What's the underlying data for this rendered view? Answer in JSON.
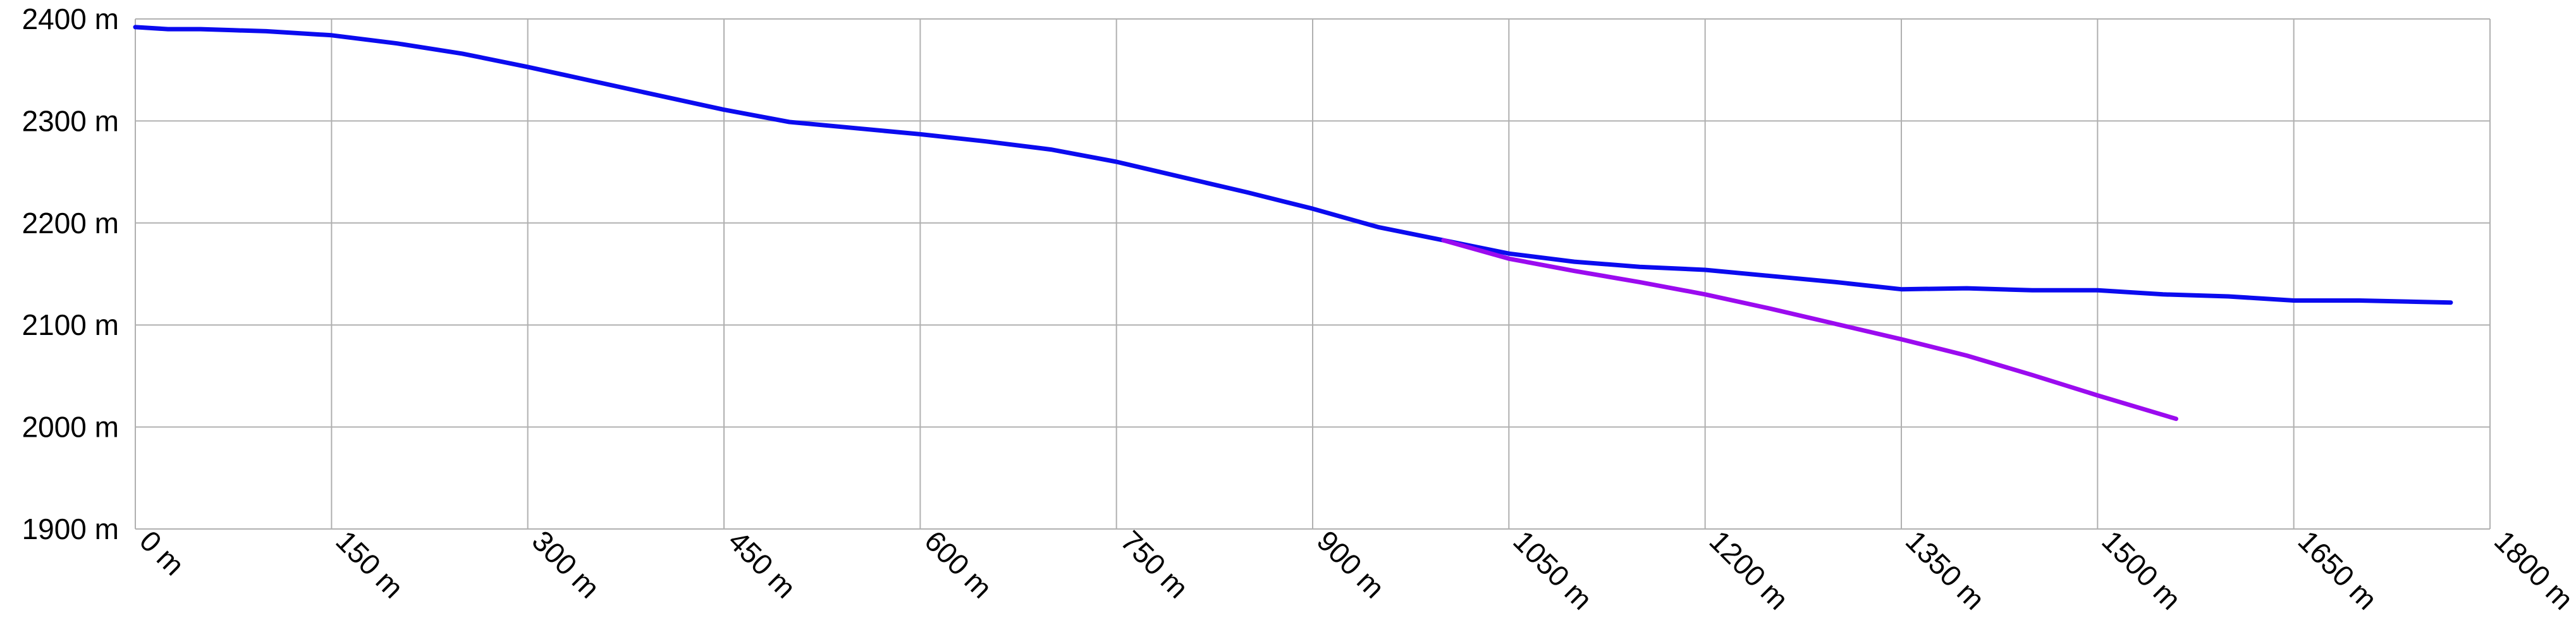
{
  "chart_data": {
    "type": "line",
    "title": "",
    "xlabel": "",
    "ylabel": "",
    "x_unit": "m",
    "y_unit": "m",
    "xlim": [
      0,
      1800
    ],
    "ylim": [
      1900,
      2400
    ],
    "x_ticks": [
      0,
      150,
      300,
      450,
      600,
      750,
      900,
      1050,
      1200,
      1350,
      1500,
      1650,
      1800
    ],
    "y_ticks": [
      2400,
      2300,
      2200,
      2100,
      2000,
      1900
    ],
    "x_tick_labels": [
      "0 m",
      "150 m",
      "300 m",
      "450 m",
      "600 m",
      "750 m",
      "900 m",
      "1050 m",
      "1200 m",
      "1350 m",
      "1500 m",
      "1650 m",
      "1800 m"
    ],
    "y_tick_labels": [
      "2400 m",
      "2300 m",
      "2200 m",
      "2100 m",
      "2000 m",
      "1900 m"
    ],
    "grid": true,
    "legend": false,
    "series": [
      {
        "color": "#0b0bef",
        "x": [
          0,
          25,
          50,
          75,
          100,
          150,
          200,
          250,
          300,
          350,
          400,
          450,
          500,
          550,
          600,
          650,
          700,
          750,
          800,
          850,
          900,
          950,
          1000,
          1050,
          1100,
          1150,
          1200,
          1250,
          1300,
          1350,
          1400,
          1450,
          1500,
          1550,
          1600,
          1650,
          1700,
          1770
        ],
        "y": [
          2392,
          2390,
          2390,
          2389,
          2388,
          2384,
          2376,
          2366,
          2353,
          2339,
          2325,
          2311,
          2299,
          2293,
          2287,
          2280,
          2272,
          2260,
          2245,
          2230,
          2214,
          2196,
          2183,
          2170,
          2162,
          2157,
          2154,
          2148,
          2142,
          2135,
          2136,
          2134,
          2134,
          2130,
          2128,
          2124,
          2124,
          2122
        ]
      },
      {
        "color": "#9b0bef",
        "x": [
          1000,
          1050,
          1100,
          1150,
          1200,
          1250,
          1300,
          1350,
          1400,
          1450,
          1500,
          1560
        ],
        "y": [
          2183,
          2165,
          2153,
          2142,
          2130,
          2116,
          2101,
          2086,
          2070,
          2051,
          2031,
          2008
        ]
      }
    ]
  }
}
